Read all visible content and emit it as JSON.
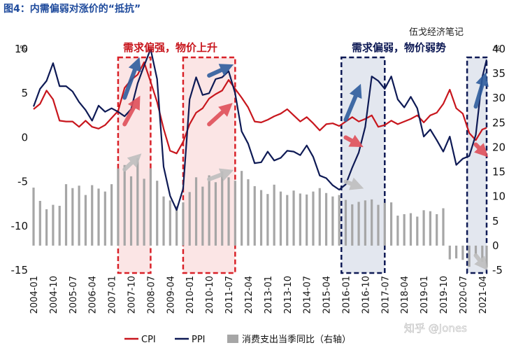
{
  "figure_title": "图4：内需偏弱对涨价的“抵抗”",
  "source_label": "伍戈经济笔记",
  "watermark": "知乎 @Jones",
  "annotations": {
    "left": "需求偏强，物价上升",
    "right": "需求偏弱，物价弱势"
  },
  "colors": {
    "cpi": "#c8161d",
    "ppi": "#0e1a55",
    "consumption": "#a6a6a6",
    "title": "#1e4a9c",
    "left_box": "#d92128",
    "right_box": "#0e1a55"
  },
  "chart_data": {
    "type": "line",
    "title": "",
    "xlabel": "",
    "y_left": {
      "unit": "%",
      "lim": [
        -15,
        10
      ],
      "ticks": [
        10,
        5,
        0,
        -5,
        -10,
        -15
      ]
    },
    "y_right": {
      "unit": "%",
      "lim": [
        -5,
        40
      ],
      "ticks": [
        40,
        35,
        30,
        25,
        20,
        15,
        10,
        5,
        0,
        -5
      ]
    },
    "x_tick_labels": [
      "2004-01",
      "2004-10",
      "2005-07",
      "2006-04",
      "2007-01",
      "2007-10",
      "2008-07",
      "2009-04",
      "2010-01",
      "2010-10",
      "2011-07",
      "2012-04",
      "2013-01",
      "2013-10",
      "2014-07",
      "2015-04",
      "2016-01",
      "2016-10",
      "2017-07",
      "2018-04",
      "2019-01",
      "2019-10",
      "2020-07",
      "2021-04"
    ],
    "x_range": [
      "2004-01",
      "2021-06"
    ],
    "grid": false,
    "legend_position": "bottom",
    "shaded_periods": [
      {
        "start": "2007-04",
        "end": "2008-07",
        "tint": "red"
      },
      {
        "start": "2009-10",
        "end": "2011-10",
        "tint": "red"
      },
      {
        "start": "2015-11",
        "end": "2017-07",
        "tint": "navy"
      },
      {
        "start": "2020-09",
        "end": "2021-06",
        "tint": "navy"
      }
    ],
    "series": [
      {
        "name": "CPI",
        "axis": "left",
        "style": "line",
        "points": [
          [
            "2004-01",
            3.2
          ],
          [
            "2004-04",
            3.8
          ],
          [
            "2004-07",
            5.3
          ],
          [
            "2004-10",
            4.3
          ],
          [
            "2005-01",
            1.9
          ],
          [
            "2005-04",
            1.8
          ],
          [
            "2005-07",
            1.8
          ],
          [
            "2005-10",
            1.2
          ],
          [
            "2006-01",
            1.9
          ],
          [
            "2006-04",
            1.2
          ],
          [
            "2006-07",
            1.0
          ],
          [
            "2006-10",
            1.4
          ],
          [
            "2007-01",
            2.2
          ],
          [
            "2007-04",
            3.0
          ],
          [
            "2007-07",
            5.6
          ],
          [
            "2007-10",
            6.5
          ],
          [
            "2008-01",
            7.1
          ],
          [
            "2008-04",
            8.5
          ],
          [
            "2008-07",
            6.3
          ],
          [
            "2008-10",
            4.0
          ],
          [
            "2009-01",
            1.0
          ],
          [
            "2009-04",
            -1.5
          ],
          [
            "2009-07",
            -1.8
          ],
          [
            "2009-10",
            -0.5
          ],
          [
            "2010-01",
            1.5
          ],
          [
            "2010-04",
            2.8
          ],
          [
            "2010-07",
            3.3
          ],
          [
            "2010-10",
            4.4
          ],
          [
            "2011-01",
            4.9
          ],
          [
            "2011-04",
            5.3
          ],
          [
            "2011-07",
            6.5
          ],
          [
            "2011-10",
            5.5
          ],
          [
            "2012-01",
            4.5
          ],
          [
            "2012-04",
            3.4
          ],
          [
            "2012-07",
            1.8
          ],
          [
            "2012-10",
            1.7
          ],
          [
            "2013-01",
            2.0
          ],
          [
            "2013-04",
            2.4
          ],
          [
            "2013-07",
            2.7
          ],
          [
            "2013-10",
            3.2
          ],
          [
            "2014-01",
            2.5
          ],
          [
            "2014-04",
            1.8
          ],
          [
            "2014-07",
            2.3
          ],
          [
            "2014-10",
            1.6
          ],
          [
            "2015-01",
            0.8
          ],
          [
            "2015-04",
            1.5
          ],
          [
            "2015-07",
            1.6
          ],
          [
            "2015-10",
            1.3
          ],
          [
            "2016-01",
            1.8
          ],
          [
            "2016-04",
            2.3
          ],
          [
            "2016-07",
            1.8
          ],
          [
            "2016-10",
            2.1
          ],
          [
            "2017-01",
            2.5
          ],
          [
            "2017-04",
            1.2
          ],
          [
            "2017-07",
            1.4
          ],
          [
            "2017-10",
            1.9
          ],
          [
            "2018-01",
            1.5
          ],
          [
            "2018-04",
            1.8
          ],
          [
            "2018-07",
            2.1
          ],
          [
            "2018-10",
            2.5
          ],
          [
            "2019-01",
            1.7
          ],
          [
            "2019-04",
            2.5
          ],
          [
            "2019-07",
            2.8
          ],
          [
            "2019-10",
            3.8
          ],
          [
            "2020-01",
            5.4
          ],
          [
            "2020-04",
            3.3
          ],
          [
            "2020-07",
            2.7
          ],
          [
            "2020-10",
            0.5
          ],
          [
            "2021-01",
            -0.3
          ],
          [
            "2021-04",
            0.9
          ],
          [
            "2021-06",
            1.1
          ]
        ]
      },
      {
        "name": "PPI",
        "axis": "left",
        "style": "line",
        "points": [
          [
            "2004-01",
            3.5
          ],
          [
            "2004-04",
            5.5
          ],
          [
            "2004-07",
            6.4
          ],
          [
            "2004-10",
            8.4
          ],
          [
            "2005-01",
            5.8
          ],
          [
            "2005-04",
            5.8
          ],
          [
            "2005-07",
            5.2
          ],
          [
            "2005-10",
            4.0
          ],
          [
            "2006-01",
            3.1
          ],
          [
            "2006-04",
            1.9
          ],
          [
            "2006-07",
            3.6
          ],
          [
            "2006-10",
            2.9
          ],
          [
            "2007-01",
            3.3
          ],
          [
            "2007-04",
            2.9
          ],
          [
            "2007-07",
            2.4
          ],
          [
            "2007-10",
            3.2
          ],
          [
            "2008-01",
            6.1
          ],
          [
            "2008-04",
            8.1
          ],
          [
            "2008-07",
            10.0
          ],
          [
            "2008-10",
            6.6
          ],
          [
            "2009-01",
            -3.3
          ],
          [
            "2009-04",
            -6.6
          ],
          [
            "2009-07",
            -8.2
          ],
          [
            "2009-10",
            -5.8
          ],
          [
            "2010-01",
            4.3
          ],
          [
            "2010-04",
            6.8
          ],
          [
            "2010-07",
            4.8
          ],
          [
            "2010-10",
            5.0
          ],
          [
            "2011-01",
            6.6
          ],
          [
            "2011-04",
            6.8
          ],
          [
            "2011-07",
            7.5
          ],
          [
            "2011-10",
            5.0
          ],
          [
            "2012-01",
            0.7
          ],
          [
            "2012-04",
            -0.7
          ],
          [
            "2012-07",
            -2.9
          ],
          [
            "2012-10",
            -2.8
          ],
          [
            "2013-01",
            -1.6
          ],
          [
            "2013-04",
            -2.6
          ],
          [
            "2013-07",
            -2.3
          ],
          [
            "2013-10",
            -1.5
          ],
          [
            "2014-01",
            -1.6
          ],
          [
            "2014-04",
            -2.0
          ],
          [
            "2014-07",
            -0.9
          ],
          [
            "2014-10",
            -2.2
          ],
          [
            "2015-01",
            -4.3
          ],
          [
            "2015-04",
            -4.6
          ],
          [
            "2015-07",
            -5.4
          ],
          [
            "2015-10",
            -5.9
          ],
          [
            "2016-01",
            -5.3
          ],
          [
            "2016-04",
            -3.4
          ],
          [
            "2016-07",
            -1.7
          ],
          [
            "2016-10",
            1.2
          ],
          [
            "2017-01",
            6.9
          ],
          [
            "2017-04",
            6.4
          ],
          [
            "2017-07",
            5.5
          ],
          [
            "2017-10",
            6.9
          ],
          [
            "2018-01",
            4.3
          ],
          [
            "2018-04",
            3.4
          ],
          [
            "2018-07",
            4.6
          ],
          [
            "2018-10",
            3.3
          ],
          [
            "2019-01",
            0.1
          ],
          [
            "2019-04",
            0.9
          ],
          [
            "2019-07",
            -0.3
          ],
          [
            "2019-10",
            -1.6
          ],
          [
            "2020-01",
            0.1
          ],
          [
            "2020-04",
            -3.1
          ],
          [
            "2020-07",
            -2.4
          ],
          [
            "2020-10",
            -2.1
          ],
          [
            "2021-01",
            0.3
          ],
          [
            "2021-04",
            6.8
          ],
          [
            "2021-06",
            8.8
          ]
        ]
      },
      {
        "name": "消费支出当季同比（右轴）",
        "axis": "right",
        "style": "bar",
        "points": [
          [
            "2004-01",
            11.8
          ],
          [
            "2004-04",
            9.1
          ],
          [
            "2004-07",
            7.4
          ],
          [
            "2004-10",
            8.3
          ],
          [
            "2005-01",
            8.1
          ],
          [
            "2005-04",
            12.5
          ],
          [
            "2005-07",
            11.7
          ],
          [
            "2005-10",
            12.2
          ],
          [
            "2006-01",
            10.3
          ],
          [
            "2006-04",
            12.3
          ],
          [
            "2006-07",
            11.6
          ],
          [
            "2006-10",
            11.0
          ],
          [
            "2007-01",
            12.5
          ],
          [
            "2007-04",
            15.7
          ],
          [
            "2007-07",
            16.4
          ],
          [
            "2007-10",
            14.1
          ],
          [
            "2008-01",
            17.8
          ],
          [
            "2008-04",
            13.6
          ],
          [
            "2008-07",
            15.7
          ],
          [
            "2008-10",
            13.2
          ],
          [
            "2009-01",
            10.0
          ],
          [
            "2009-04",
            9.2
          ],
          [
            "2009-07",
            8.0
          ],
          [
            "2009-10",
            8.8
          ],
          [
            "2010-01",
            10.9
          ],
          [
            "2010-04",
            13.9
          ],
          [
            "2010-07",
            12.0
          ],
          [
            "2010-10",
            14.3
          ],
          [
            "2011-01",
            12.9
          ],
          [
            "2011-04",
            15.1
          ],
          [
            "2011-07",
            13.9
          ],
          [
            "2011-10",
            13.2
          ],
          [
            "2012-01",
            15.2
          ],
          [
            "2012-04",
            13.5
          ],
          [
            "2012-07",
            12.1
          ],
          [
            "2012-10",
            11.3
          ],
          [
            "2013-01",
            10.5
          ],
          [
            "2013-04",
            12.4
          ],
          [
            "2013-07",
            11.0
          ],
          [
            "2013-10",
            10.3
          ],
          [
            "2014-01",
            11.2
          ],
          [
            "2014-04",
            10.6
          ],
          [
            "2014-07",
            10.4
          ],
          [
            "2014-10",
            11.0
          ],
          [
            "2015-01",
            11.7
          ],
          [
            "2015-04",
            10.7
          ],
          [
            "2015-07",
            10.0
          ],
          [
            "2015-10",
            10.3
          ],
          [
            "2016-01",
            9.3
          ],
          [
            "2016-04",
            8.4
          ],
          [
            "2016-07",
            8.9
          ],
          [
            "2016-10",
            9.2
          ],
          [
            "2017-01",
            9.4
          ],
          [
            "2017-04",
            8.3
          ],
          [
            "2017-07",
            8.7
          ],
          [
            "2017-10",
            8.8
          ],
          [
            "2018-01",
            6.1
          ],
          [
            "2018-04",
            6.4
          ],
          [
            "2018-07",
            6.6
          ],
          [
            "2018-10",
            5.9
          ],
          [
            "2019-01",
            7.2
          ],
          [
            "2019-04",
            7.0
          ],
          [
            "2019-07",
            6.4
          ],
          [
            "2019-10",
            7.6
          ],
          [
            "2020-01",
            -2.8
          ],
          [
            "2020-04",
            -2.6
          ],
          [
            "2020-07",
            -2.9
          ],
          [
            "2020-10",
            -4.3
          ],
          [
            "2021-01",
            -2.0
          ],
          [
            "2021-04",
            -3.3
          ],
          [
            "2021-06",
            -4.5
          ]
        ]
      }
    ]
  }
}
